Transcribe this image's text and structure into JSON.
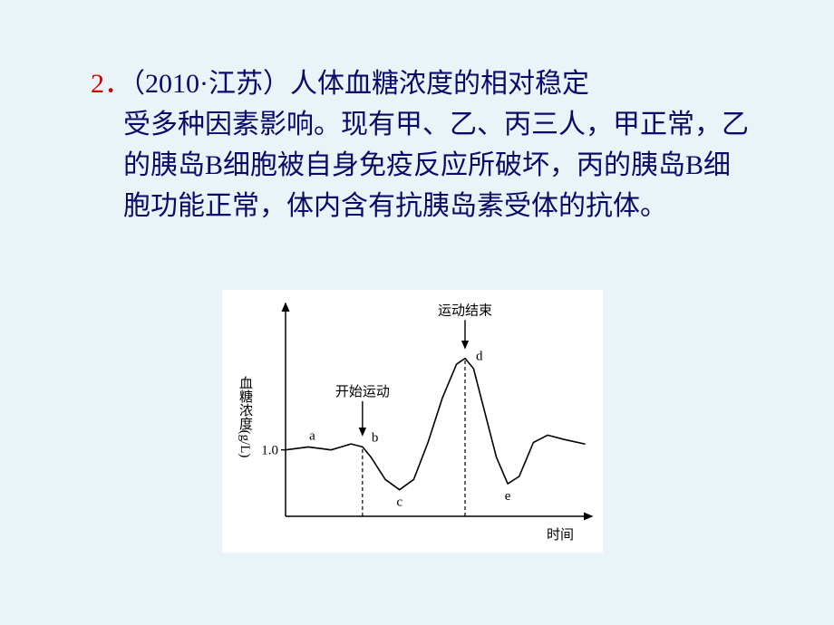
{
  "question": {
    "number": "2．",
    "source": "（2010·江苏）",
    "body_line1": "人体血糖浓度的相对稳定",
    "body_rest": "受多种因素影响。现有甲、乙、丙三人，甲正常，乙的胰岛B细胞被自身免疫反应所破坏，丙的胰岛B细胞功能正常，体内含有抗胰岛素受体的抗体。"
  },
  "chart": {
    "type": "line",
    "background_color": "#ffffff",
    "axis_color": "#000000",
    "curve_color": "#000000",
    "text_color": "#000000",
    "font_family": "SimSun",
    "font_size_pt": 13,
    "curve_width": 1.6,
    "axis_width": 1.5,
    "y_axis_label": "血糖浓度(g/L)",
    "x_axis_label": "时间",
    "y_tick_label": "1.0",
    "y_tick_value": 1.0,
    "ylim": [
      0.55,
      1.9
    ],
    "annotations": {
      "start_exercise": "开始运动",
      "end_exercise": "运动结束"
    },
    "point_labels": [
      "a",
      "b",
      "c",
      "d",
      "e"
    ],
    "points": [
      {
        "t": 0,
        "y": 1.0
      },
      {
        "t": 8,
        "y": 1.02
      },
      {
        "t": 16,
        "y": 1.0
      },
      {
        "t": 23,
        "y": 1.04
      },
      {
        "t": 27,
        "y": 1.02
      },
      {
        "t": 30,
        "y": 0.95
      },
      {
        "t": 35,
        "y": 0.8
      },
      {
        "t": 40,
        "y": 0.73
      },
      {
        "t": 45,
        "y": 0.8
      },
      {
        "t": 50,
        "y": 1.05
      },
      {
        "t": 55,
        "y": 1.35
      },
      {
        "t": 60,
        "y": 1.58
      },
      {
        "t": 63,
        "y": 1.62
      },
      {
        "t": 66,
        "y": 1.55
      },
      {
        "t": 70,
        "y": 1.25
      },
      {
        "t": 74,
        "y": 0.95
      },
      {
        "t": 78,
        "y": 0.77
      },
      {
        "t": 82,
        "y": 0.82
      },
      {
        "t": 87,
        "y": 1.05
      },
      {
        "t": 92,
        "y": 1.1
      },
      {
        "t": 98,
        "y": 1.07
      },
      {
        "t": 105,
        "y": 1.04
      }
    ],
    "label_positions": {
      "a": {
        "t": 10,
        "y": 1.02
      },
      "b": {
        "t": 27,
        "y": 1.02
      },
      "c": {
        "t": 40,
        "y": 0.73
      },
      "d": {
        "t": 63,
        "y": 1.62
      },
      "e": {
        "t": 78,
        "y": 0.77
      }
    },
    "arrow_positions": {
      "start": {
        "t": 27,
        "y_from": 1.33,
        "y_to": 1.1
      },
      "end": {
        "t": 63,
        "y_from": 1.88,
        "y_to": 1.69
      }
    },
    "dashed_positions": [
      27,
      63
    ]
  }
}
